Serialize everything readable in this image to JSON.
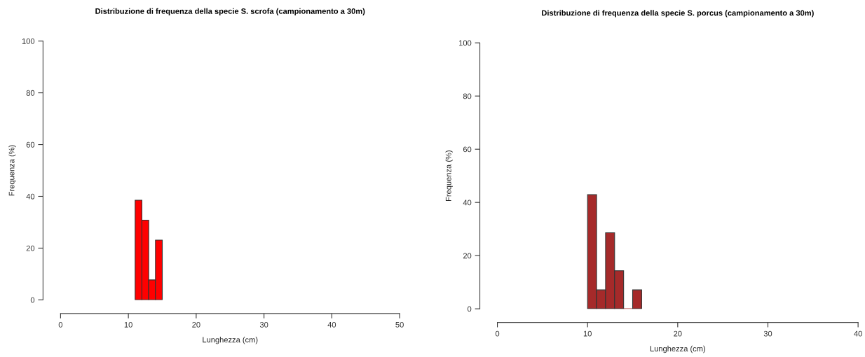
{
  "chart_data": [
    {
      "type": "histogram",
      "title": "Distribuzione di frequenza della specie S. scrofa (campionamento a 30m)",
      "xlabel": "Lunghezza (cm)",
      "ylabel": "Frequenza (%)",
      "bins": [
        11,
        12,
        13,
        14,
        15
      ],
      "values": [
        38.5,
        30.8,
        7.7,
        23.1
      ],
      "color": "#ff0000",
      "xlim": [
        0,
        50
      ],
      "xticks": [
        0,
        10,
        20,
        30,
        40,
        50
      ],
      "ylim": [
        0,
        100
      ],
      "yticks": [
        0,
        20,
        40,
        60,
        80,
        100
      ],
      "grid": false
    },
    {
      "type": "histogram",
      "title": "Distribuzione di frequenza della specie S. porcus (campionamento a 30m)",
      "xlabel": "Lunghezza (cm)",
      "ylabel": "Frequenza (%)",
      "bins": [
        10,
        11,
        12,
        13,
        14,
        15,
        16
      ],
      "values": [
        42.9,
        7.1,
        28.6,
        14.3,
        0,
        7.1
      ],
      "color": "#a52a2a",
      "xlim": [
        0,
        40
      ],
      "xticks": [
        0,
        10,
        20,
        30,
        40
      ],
      "ylim": [
        0,
        100
      ],
      "yticks": [
        0,
        20,
        40,
        60,
        80,
        100
      ],
      "grid": false
    }
  ]
}
